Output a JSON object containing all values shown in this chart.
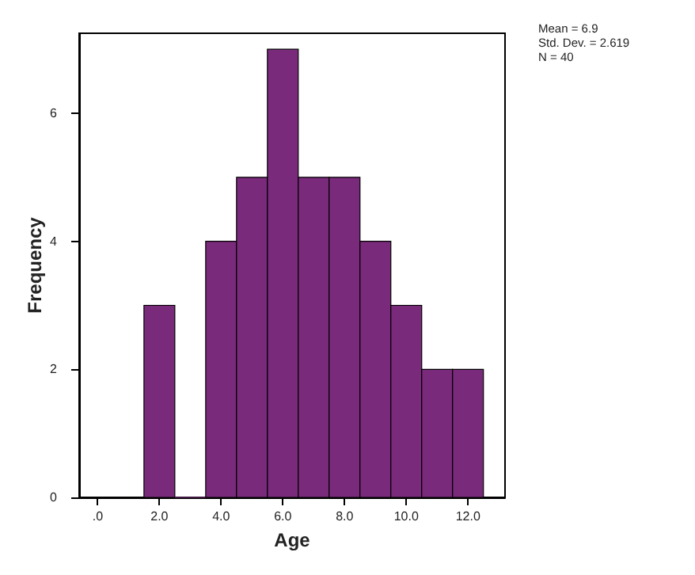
{
  "chart_data": {
    "type": "histogram",
    "xlabel": "Age",
    "ylabel": "Frequency",
    "bins": [
      1.5,
      2.5,
      3.5,
      4.5,
      5.5,
      6.5,
      7.5,
      8.5,
      9.5,
      10.5,
      11.5,
      12.5
    ],
    "values": [
      3,
      0,
      4,
      5,
      7,
      5,
      5,
      4,
      3,
      2,
      2
    ],
    "color": "#7a2a7b",
    "xlim": [
      -0.6,
      13.2
    ],
    "ylim": [
      0,
      7.25
    ],
    "xticks": [
      {
        "value": 0,
        "label": ".0"
      },
      {
        "value": 2,
        "label": "2.0"
      },
      {
        "value": 4,
        "label": "4.0"
      },
      {
        "value": 6,
        "label": "6.0"
      },
      {
        "value": 8,
        "label": "8.0"
      },
      {
        "value": 10,
        "label": "10.0"
      },
      {
        "value": 12,
        "label": "12.0"
      }
    ],
    "yticks": [
      0,
      2,
      4,
      6
    ],
    "grid": false,
    "annotations": [
      "Mean = 6.9",
      "Std. Dev. = 2.619",
      "N = 40"
    ]
  }
}
